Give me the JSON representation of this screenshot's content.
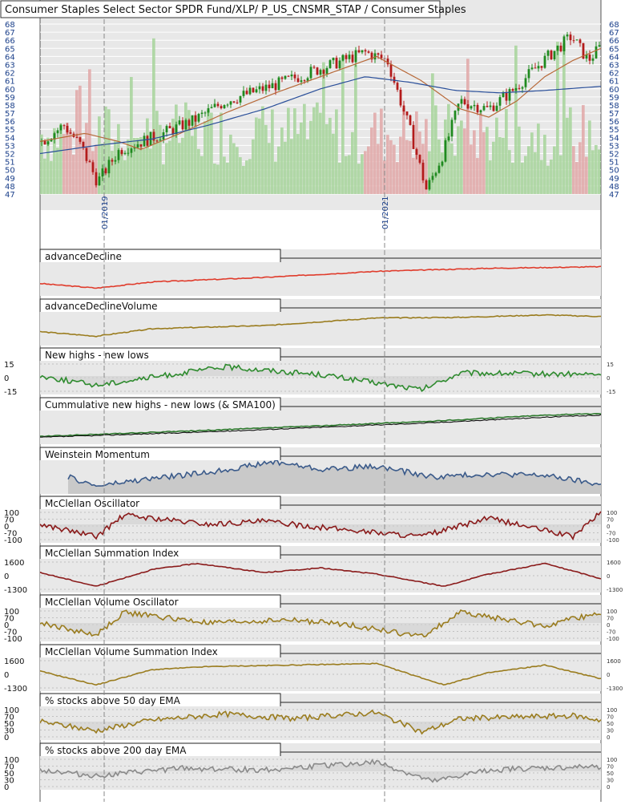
{
  "title": "Consumer Staples Select Sector SPDR Fund/XLP/ P_US_CNSMR_STAP / Consumer Staples",
  "colors": {
    "background": "#e8e8e8",
    "up_candle": "#1f8a1f",
    "down_candle": "#b31b1b",
    "sma_short": "#b86a3a",
    "sma_long": "#2a4f9a",
    "volume_up": "#a6d49a",
    "volume_down": "#e0a7a7",
    "axis_text": "#1a3f8a"
  },
  "x_axis": {
    "date_labels": [
      "01/2019",
      "01/2021"
    ]
  },
  "chart_data": [
    {
      "type": "candlestick",
      "title": "Consumer Staples Select Sector SPDR Fund/XLP/ P_US_CNSMR_STAP / Consumer Staples",
      "ylim": [
        47,
        68
      ],
      "yticks": [
        47,
        48,
        49,
        50,
        51,
        52,
        53,
        54,
        55,
        56,
        57,
        58,
        59,
        60,
        61,
        62,
        63,
        64,
        65,
        66,
        67,
        68
      ],
      "price_anchors": [
        [
          0,
          53.5
        ],
        [
          0.04,
          55.5
        ],
        [
          0.07,
          53.0
        ],
        [
          0.1,
          48.5
        ],
        [
          0.14,
          52.5
        ],
        [
          0.2,
          54.0
        ],
        [
          0.27,
          56.0
        ],
        [
          0.33,
          58.5
        ],
        [
          0.42,
          60.5
        ],
        [
          0.5,
          62.5
        ],
        [
          0.58,
          64.5
        ],
        [
          0.62,
          63.5
        ],
        [
          0.66,
          55.0
        ],
        [
          0.69,
          47.5
        ],
        [
          0.72,
          52.0
        ],
        [
          0.75,
          58.5
        ],
        [
          0.8,
          57.5
        ],
        [
          0.84,
          59.5
        ],
        [
          0.9,
          63.5
        ],
        [
          0.95,
          66.5
        ],
        [
          0.98,
          63.5
        ],
        [
          1.0,
          65.0
        ]
      ],
      "sma_short_anchors": [
        [
          0,
          53.5
        ],
        [
          0.08,
          54.5
        ],
        [
          0.14,
          53.5
        ],
        [
          0.18,
          52.5
        ],
        [
          0.25,
          54.5
        ],
        [
          0.33,
          57.0
        ],
        [
          0.42,
          59.5
        ],
        [
          0.52,
          62.0
        ],
        [
          0.6,
          64.0
        ],
        [
          0.68,
          61.0
        ],
        [
          0.75,
          57.5
        ],
        [
          0.8,
          56.5
        ],
        [
          0.85,
          58.5
        ],
        [
          0.9,
          61.5
        ],
        [
          0.95,
          63.5
        ],
        [
          1.0,
          65.0
        ]
      ],
      "sma_long_anchors": [
        [
          0,
          52.0
        ],
        [
          0.1,
          53.0
        ],
        [
          0.2,
          53.8
        ],
        [
          0.3,
          55.5
        ],
        [
          0.4,
          57.5
        ],
        [
          0.5,
          60.0
        ],
        [
          0.58,
          61.5
        ],
        [
          0.66,
          60.8
        ],
        [
          0.74,
          59.8
        ],
        [
          0.82,
          59.5
        ],
        [
          0.9,
          59.8
        ],
        [
          1.0,
          60.3
        ]
      ]
    },
    {
      "type": "line",
      "title": "advanceDecline",
      "series": [
        {
          "name": "advanceDecline",
          "color": "#e03c2c",
          "anchors": [
            [
              0,
              0.3
            ],
            [
              0.1,
              0.15
            ],
            [
              0.2,
              0.35
            ],
            [
              0.4,
              0.5
            ],
            [
              0.6,
              0.7
            ],
            [
              0.8,
              0.8
            ],
            [
              1.0,
              0.85
            ]
          ]
        }
      ]
    },
    {
      "type": "line",
      "title": "advanceDeclineVolume",
      "series": [
        {
          "name": "advanceDeclineVolume",
          "color": "#9a7c1e",
          "anchors": [
            [
              0,
              0.35
            ],
            [
              0.1,
              0.2
            ],
            [
              0.2,
              0.45
            ],
            [
              0.4,
              0.55
            ],
            [
              0.6,
              0.8
            ],
            [
              0.75,
              0.82
            ],
            [
              0.9,
              0.9
            ],
            [
              1.0,
              0.85
            ]
          ]
        }
      ]
    },
    {
      "type": "line",
      "title": "New highs - new lows",
      "yticks": [
        "15",
        "0",
        "-15"
      ],
      "series": [
        {
          "name": "New highs - new lows",
          "color": "#2e8b2e",
          "anchors": [
            [
              0,
              0.5
            ],
            [
              0.1,
              0.2
            ],
            [
              0.33,
              0.8
            ],
            [
              0.5,
              0.55
            ],
            [
              0.68,
              0.05
            ],
            [
              0.75,
              0.6
            ],
            [
              1.0,
              0.55
            ]
          ]
        }
      ]
    },
    {
      "type": "line",
      "title": "Cummulative new highs - new lows (& SMA100)",
      "series": [
        {
          "name": "cumulative",
          "color": "#2e7a2e",
          "anchors": [
            [
              0,
              0.15
            ],
            [
              0.3,
              0.35
            ],
            [
              0.5,
              0.5
            ],
            [
              0.7,
              0.65
            ],
            [
              0.9,
              0.85
            ],
            [
              1.0,
              0.9
            ]
          ]
        },
        {
          "name": "SMA100",
          "color": "#111111",
          "anchors": [
            [
              0,
              0.12
            ],
            [
              0.3,
              0.3
            ],
            [
              0.5,
              0.45
            ],
            [
              0.7,
              0.6
            ],
            [
              0.9,
              0.78
            ],
            [
              1.0,
              0.85
            ]
          ]
        }
      ]
    },
    {
      "type": "area",
      "title": "Weinstein Momentum",
      "series": [
        {
          "name": "Weinstein Momentum",
          "color": "#3a5a8a",
          "anchors": [
            [
              0.05,
              0.45
            ],
            [
              0.1,
              0.15
            ],
            [
              0.2,
              0.4
            ],
            [
              0.3,
              0.6
            ],
            [
              0.42,
              0.95
            ],
            [
              0.5,
              0.7
            ],
            [
              0.6,
              0.8
            ],
            [
              0.7,
              0.45
            ],
            [
              0.8,
              0.55
            ],
            [
              0.9,
              0.5
            ],
            [
              1.0,
              0.2
            ]
          ]
        }
      ]
    },
    {
      "type": "line",
      "title": "McClellan Oscillator",
      "yticks": [
        "100",
        "70",
        "0",
        "-70",
        "-100"
      ],
      "series": [
        {
          "name": "McClellan Oscillator",
          "color": "#8a1a1a",
          "anchors": [
            [
              0,
              0.5
            ],
            [
              0.1,
              0.1
            ],
            [
              0.15,
              0.8
            ],
            [
              0.3,
              0.5
            ],
            [
              0.4,
              0.6
            ],
            [
              0.5,
              0.4
            ],
            [
              0.68,
              0.1
            ],
            [
              0.8,
              0.7
            ],
            [
              0.95,
              0.1
            ],
            [
              1.0,
              0.9
            ]
          ]
        }
      ]
    },
    {
      "type": "line",
      "title": "McClellan Summation Index",
      "yticks": [
        "1600",
        "0",
        "-1300"
      ],
      "series": [
        {
          "name": "McClellan Summation Index",
          "color": "#8a1a1a",
          "anchors": [
            [
              0,
              0.55
            ],
            [
              0.1,
              0.1
            ],
            [
              0.2,
              0.65
            ],
            [
              0.28,
              0.85
            ],
            [
              0.4,
              0.55
            ],
            [
              0.5,
              0.7
            ],
            [
              0.6,
              0.5
            ],
            [
              0.72,
              0.1
            ],
            [
              0.8,
              0.5
            ],
            [
              0.9,
              0.85
            ],
            [
              1.0,
              0.35
            ]
          ]
        }
      ]
    },
    {
      "type": "line",
      "title": "McClellan Volume Oscillator",
      "yticks": [
        "100",
        "70",
        "0",
        "-70",
        "-100"
      ],
      "series": [
        {
          "name": "McClellan Volume Oscillator",
          "color": "#9a7c1e",
          "anchors": [
            [
              0,
              0.5
            ],
            [
              0.1,
              0.1
            ],
            [
              0.15,
              0.85
            ],
            [
              0.3,
              0.5
            ],
            [
              0.45,
              0.6
            ],
            [
              0.55,
              0.45
            ],
            [
              0.68,
              0.05
            ],
            [
              0.75,
              0.85
            ],
            [
              0.9,
              0.4
            ],
            [
              1.0,
              0.85
            ]
          ]
        }
      ]
    },
    {
      "type": "line",
      "title": "McClellan Volume Summation Index",
      "yticks": [
        "1600",
        "0",
        "-1300"
      ],
      "series": [
        {
          "name": "McClellan Volume Summation Index",
          "color": "#9a7c1e",
          "anchors": [
            [
              0,
              0.55
            ],
            [
              0.1,
              0.1
            ],
            [
              0.2,
              0.6
            ],
            [
              0.3,
              0.7
            ],
            [
              0.45,
              0.75
            ],
            [
              0.6,
              0.8
            ],
            [
              0.72,
              0.1
            ],
            [
              0.8,
              0.5
            ],
            [
              0.9,
              0.75
            ],
            [
              1.0,
              0.3
            ]
          ]
        }
      ]
    },
    {
      "type": "line",
      "title": "% stocks above 50 day EMA",
      "yticks": [
        "100",
        "70",
        "50",
        "30",
        "0"
      ],
      "series": [
        {
          "name": "% stocks above 50 day EMA",
          "color": "#9a7c1e",
          "anchors": [
            [
              0,
              0.5
            ],
            [
              0.1,
              0.2
            ],
            [
              0.2,
              0.55
            ],
            [
              0.33,
              0.75
            ],
            [
              0.45,
              0.6
            ],
            [
              0.6,
              0.8
            ],
            [
              0.68,
              0.15
            ],
            [
              0.75,
              0.6
            ],
            [
              0.85,
              0.65
            ],
            [
              0.95,
              0.7
            ],
            [
              1.0,
              0.55
            ]
          ]
        }
      ]
    },
    {
      "type": "line",
      "title": "% stocks above 200 day EMA",
      "yticks": [
        "100",
        "70",
        "50",
        "30",
        "0"
      ],
      "series": [
        {
          "name": "% stocks above 200 day EMA",
          "color": "#8a8a8a",
          "anchors": [
            [
              0,
              0.55
            ],
            [
              0.1,
              0.35
            ],
            [
              0.25,
              0.6
            ],
            [
              0.4,
              0.55
            ],
            [
              0.6,
              0.8
            ],
            [
              0.7,
              0.15
            ],
            [
              0.8,
              0.55
            ],
            [
              0.9,
              0.6
            ],
            [
              1.0,
              0.65
            ]
          ]
        }
      ]
    }
  ]
}
